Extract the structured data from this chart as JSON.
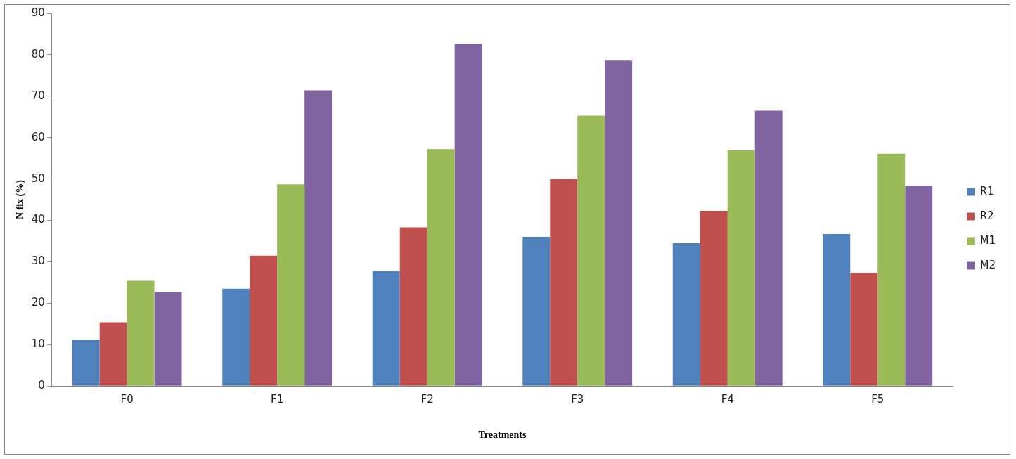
{
  "chart_data": {
    "type": "bar",
    "xlabel": "Treatments",
    "ylabel": "N fix (%)",
    "categories": [
      "F0",
      "F1",
      "F2",
      "F3",
      "F4",
      "F5"
    ],
    "series": [
      {
        "name": "R1",
        "color": "#4f81bd",
        "values": [
          11.2,
          23.5,
          27.8,
          36.0,
          34.5,
          36.7
        ]
      },
      {
        "name": "R2",
        "color": "#c0504d",
        "values": [
          15.4,
          31.5,
          38.3,
          50.0,
          42.3,
          27.3
        ]
      },
      {
        "name": "M1",
        "color": "#9bbb59",
        "values": [
          25.4,
          48.7,
          57.2,
          65.3,
          56.9,
          56.1
        ]
      },
      {
        "name": "M2",
        "color": "#8064a2",
        "values": [
          22.7,
          71.4,
          82.6,
          78.6,
          66.5,
          48.4
        ]
      }
    ],
    "ylim": [
      0,
      90
    ],
    "yticks": [
      0,
      10,
      20,
      30,
      40,
      50,
      60,
      70,
      80,
      90
    ],
    "grid": false,
    "legend": "right"
  }
}
